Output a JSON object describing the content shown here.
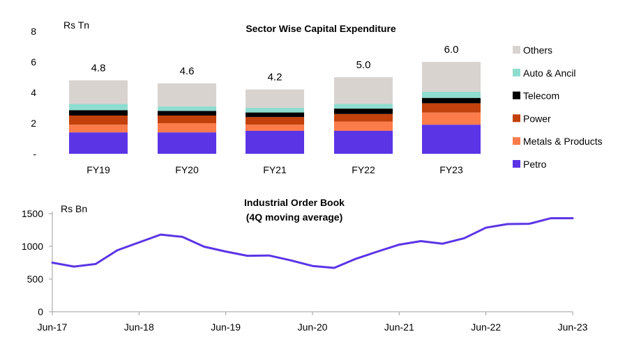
{
  "chart_data": [
    {
      "type": "bar",
      "stacked": true,
      "title": "Sector Wise Capital Expenditure",
      "ylabel": "Rs Tn",
      "ylim": [
        0,
        8
      ],
      "yticks": [
        0,
        2,
        4,
        6,
        8
      ],
      "ytick_labels": [
        "-",
        "2",
        "4",
        "6",
        "8"
      ],
      "categories": [
        "FY19",
        "FY20",
        "FY21",
        "FY22",
        "FY23"
      ],
      "totals": [
        "4.8",
        "4.6",
        "4.2",
        "5.0",
        "6.0"
      ],
      "legend_position": "right",
      "series": [
        {
          "name": "Petro",
          "color": "#5b34e6",
          "values": [
            1.4,
            1.4,
            1.5,
            1.5,
            1.9
          ]
        },
        {
          "name": "Metals & Products",
          "color": "#fb7b4b",
          "values": [
            0.5,
            0.6,
            0.4,
            0.6,
            0.8
          ]
        },
        {
          "name": "Power",
          "color": "#c2410c",
          "values": [
            0.6,
            0.5,
            0.5,
            0.5,
            0.6
          ]
        },
        {
          "name": "Telecom",
          "color": "#000000",
          "values": [
            0.35,
            0.3,
            0.3,
            0.35,
            0.35
          ]
        },
        {
          "name": "Auto & Ancil",
          "color": "#8fdcd0",
          "values": [
            0.4,
            0.3,
            0.3,
            0.3,
            0.4
          ]
        },
        {
          "name": "Others",
          "color": "#d9d3d0",
          "values": [
            1.55,
            1.5,
            1.2,
            1.75,
            1.95
          ]
        }
      ]
    },
    {
      "type": "line",
      "title": "Industrial Order Book",
      "subtitle": "(4Q moving average)",
      "ylabel": "Rs Bn",
      "ylim": [
        0,
        1500
      ],
      "yticks": [
        0,
        500,
        1000,
        1500
      ],
      "ytick_labels": [
        "0",
        "500",
        "1000",
        "1500"
      ],
      "xtick_labels": [
        "Jun-17",
        "Jun-18",
        "Jun-19",
        "Jun-20",
        "Jun-21",
        "Jun-22",
        "Jun-23"
      ],
      "series": [
        {
          "color": "#5b34e6",
          "x": [
            "Jun-17",
            "Sep-17",
            "Dec-17",
            "Mar-18",
            "Jun-18",
            "Sep-18",
            "Dec-18",
            "Mar-19",
            "Jun-19",
            "Sep-19",
            "Dec-19",
            "Mar-20",
            "Jun-20",
            "Sep-20",
            "Dec-20",
            "Mar-21",
            "Jun-21",
            "Sep-21",
            "Dec-21",
            "Mar-22",
            "Jun-22",
            "Sep-22",
            "Dec-22",
            "Mar-23",
            "Jun-23"
          ],
          "values": [
            750,
            690,
            730,
            940,
            1060,
            1180,
            1145,
            995,
            920,
            855,
            860,
            785,
            700,
            670,
            810,
            920,
            1025,
            1080,
            1040,
            1125,
            1285,
            1340,
            1345,
            1430,
            1430
          ]
        }
      ]
    }
  ]
}
